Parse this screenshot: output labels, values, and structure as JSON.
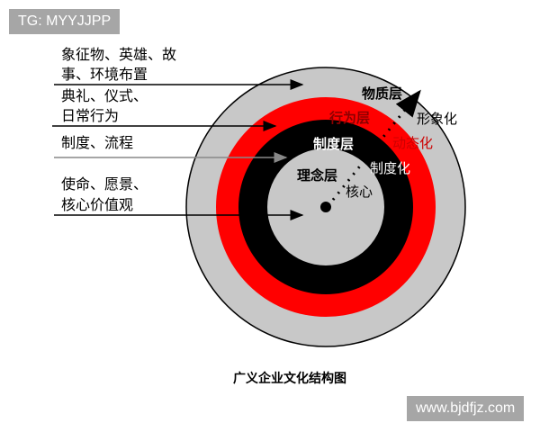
{
  "watermark_top": "TG: MYYJJPP",
  "watermark_bottom": "www.bjdfjz.com",
  "caption": "广义企业文化结构图",
  "left_labels": [
    {
      "line1": "象征物、英雄、故",
      "line2": "事、环境布置"
    },
    {
      "line1": "典礼、仪式、",
      "line2": "日常行为"
    },
    {
      "line1": "制度、流程",
      "line2": ""
    },
    {
      "line1": "使命、愿景、",
      "line2": "核心价值观"
    }
  ],
  "layers": [
    "物质层",
    "行为层",
    "制度层",
    "理念层"
  ],
  "process_labels": [
    "形象化",
    "动态化",
    "制度化",
    "核心"
  ],
  "colors": {
    "outer": "#c8c8c8",
    "behavior": "#ff0000",
    "system": "#000000",
    "core": "#c8c8c8",
    "accent": "#cc0000"
  }
}
